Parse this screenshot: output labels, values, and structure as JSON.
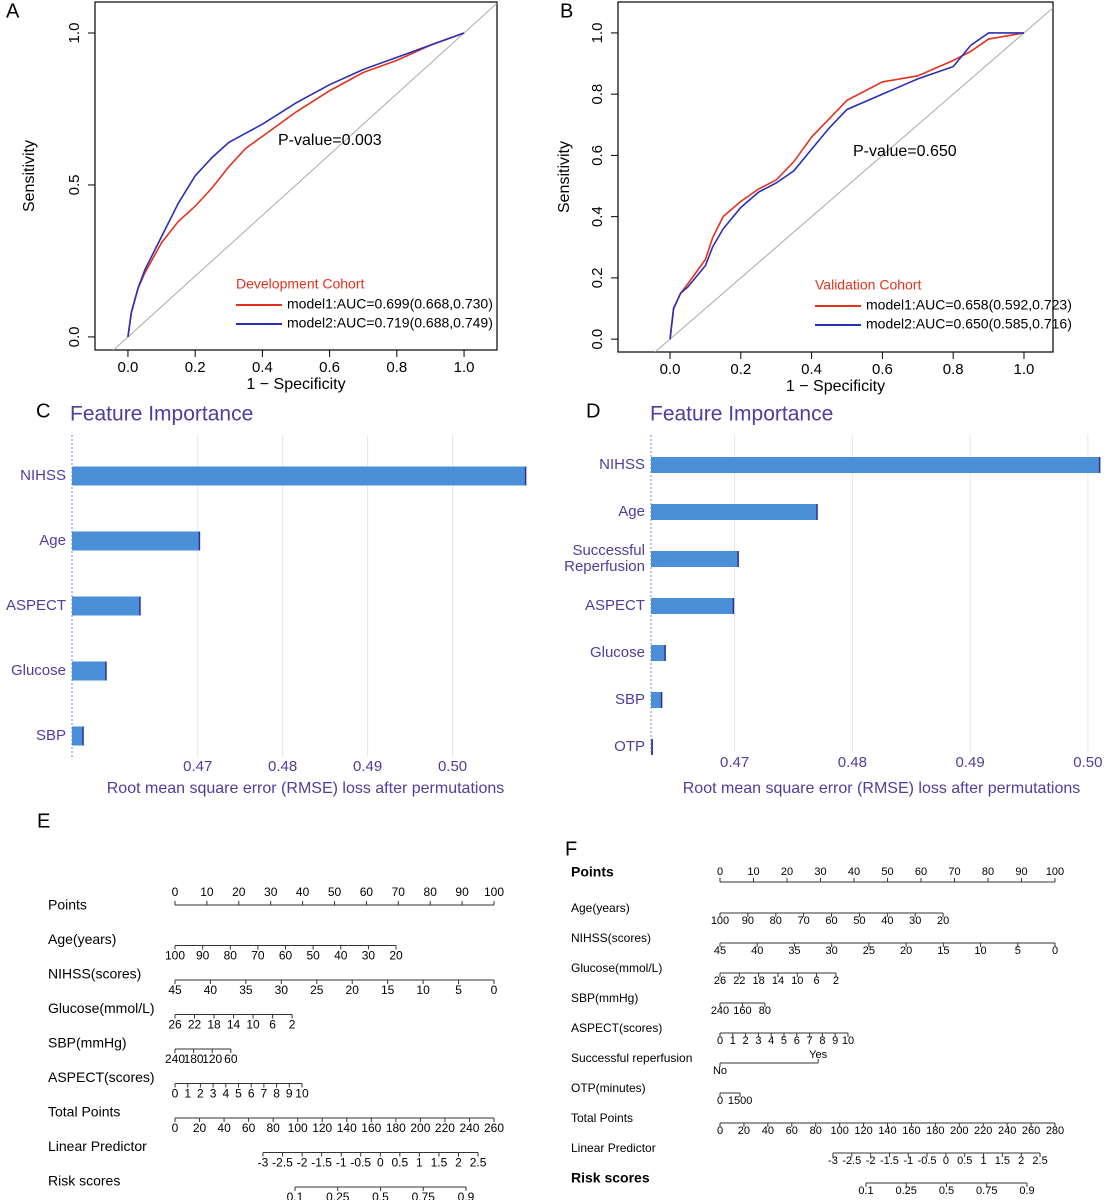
{
  "chart_data": [
    {
      "type": "line",
      "label": "A",
      "xlabel": "1 − Specificity",
      "ylabel": "Sensitivity",
      "xlim": [
        -0.098,
        1.098
      ],
      "ylim": [
        -0.043,
        1.102
      ],
      "xticks": [
        {
          "value": 0,
          "label": "0.0"
        },
        0.2,
        0.4,
        0.6,
        0.8,
        {
          "value": 1,
          "label": "1.0"
        }
      ],
      "yticks": [
        {
          "value": 0,
          "label": "0.0"
        },
        {
          "value": 0.5,
          "label": "0.5"
        },
        {
          "value": 1,
          "label": "1.0"
        }
      ],
      "x": [
        0,
        0.01,
        0.03,
        0.05,
        0.1,
        0.15,
        0.2,
        0.25,
        0.3,
        0.35,
        0.4,
        0.5,
        0.6,
        0.7,
        0.8,
        0.9,
        1
      ],
      "series": [
        {
          "name": "model1:AUC=0.699(0.668,0.730)",
          "color": "#e3321e",
          "values": [
            0,
            0.08,
            0.16,
            0.21,
            0.31,
            0.38,
            0.43,
            0.49,
            0.56,
            0.62,
            0.66,
            0.74,
            0.81,
            0.87,
            0.91,
            0.96,
            1
          ]
        },
        {
          "name": "model2:AUC=0.719(0.688,0.749)",
          "color": "#2a2fb5",
          "values": [
            0,
            0.08,
            0.16,
            0.22,
            0.33,
            0.44,
            0.53,
            0.59,
            0.64,
            0.67,
            0.7,
            0.77,
            0.83,
            0.88,
            0.92,
            0.96,
            1
          ]
        }
      ],
      "legend_title": "Development Cohort",
      "legend_title_color": "#e3321e",
      "legend": "bottom-right",
      "annotation": "P-value=0.003",
      "reference_line": true
    },
    {
      "type": "line",
      "label": "B",
      "xlabel": "1 − Specificity",
      "ylabel": "Sensitivity",
      "xlim": [
        -0.147,
        1.082
      ],
      "ylim": [
        -0.042,
        1.101
      ],
      "xticks": [
        {
          "value": 0,
          "label": "0.0"
        },
        0.2,
        0.4,
        0.6,
        0.8,
        {
          "value": 1,
          "label": "1.0"
        }
      ],
      "yticks": [
        {
          "value": 0,
          "label": "0.0"
        },
        0.2,
        0.4,
        0.6,
        0.8,
        {
          "value": 1,
          "label": "1.0"
        }
      ],
      "x": [
        0,
        0.01,
        0.03,
        0.05,
        0.1,
        0.12,
        0.15,
        0.2,
        0.25,
        0.3,
        0.35,
        0.4,
        0.45,
        0.5,
        0.6,
        0.7,
        0.8,
        0.85,
        0.9,
        1
      ],
      "series": [
        {
          "name": "model1:AUC=0.658(0.592,0.723)",
          "color": "#e3321e",
          "values": [
            0,
            0.1,
            0.15,
            0.18,
            0.26,
            0.33,
            0.4,
            0.45,
            0.49,
            0.52,
            0.58,
            0.66,
            0.72,
            0.78,
            0.84,
            0.86,
            0.91,
            0.94,
            0.98,
            1
          ]
        },
        {
          "name": "model2:AUC=0.650(0.585,0.716)",
          "color": "#2a2fb5",
          "values": [
            0,
            0.1,
            0.15,
            0.17,
            0.24,
            0.3,
            0.36,
            0.43,
            0.48,
            0.51,
            0.55,
            0.62,
            0.69,
            0.75,
            0.8,
            0.85,
            0.89,
            0.96,
            1,
            1
          ]
        }
      ],
      "legend_title": "Validation Cohort",
      "legend_title_color": "#e3321e",
      "legend": "bottom-right",
      "annotation": "P-value=0.650",
      "reference_line": true
    },
    {
      "type": "bar",
      "orientation": "horizontal",
      "label": "C",
      "title": "Feature Importance",
      "xlabel": "Root mean square error (RMSE) loss after permutations",
      "categories": [
        "NIHSS",
        "Age",
        "ASPECT",
        "Glucose",
        "SBP"
      ],
      "values": [
        0.5086,
        0.4702,
        0.4632,
        0.4592,
        0.4565
      ],
      "baseline": 0.4552,
      "xlim": [
        0.4552,
        0.509
      ],
      "xticks": [
        0.47,
        0.48,
        0.49,
        {
          "value": 0.5,
          "label": "0.50"
        }
      ],
      "color": "#4a8fd8",
      "grid": true
    },
    {
      "type": "bar",
      "orientation": "horizontal",
      "label": "D",
      "title": "Feature Importance",
      "xlabel": "Root mean square error (RMSE) loss after permutations",
      "categories": [
        "NIHSS",
        "Age",
        "Successful Reperfusion",
        "ASPECT",
        "Glucose",
        "SBP",
        "OTP"
      ],
      "values": [
        0.501,
        0.477,
        0.4703,
        0.4699,
        0.4641,
        0.4638,
        0.463
      ],
      "baseline": 0.4629,
      "xlim": [
        0.4629,
        0.5012
      ],
      "xticks": [
        0.47,
        0.48,
        0.49,
        {
          "value": 0.5,
          "label": "0.50"
        }
      ],
      "color": "#4a8fd8",
      "grid": true
    },
    {
      "type": "nomogram",
      "label": "E",
      "points_range": [
        0,
        100
      ],
      "total_range": [
        0,
        260
      ],
      "rows": [
        {
          "name": "Points",
          "ticks": [
            0,
            10,
            20,
            30,
            40,
            50,
            60,
            70,
            80,
            90,
            100
          ],
          "span": [
            0,
            100
          ],
          "axis": "points"
        },
        {
          "name": "Age(years)",
          "ticks": [
            100,
            90,
            80,
            70,
            60,
            50,
            40,
            30,
            20
          ],
          "span": [
            0,
            69.3
          ],
          "axis": "points"
        },
        {
          "name": "NIHSS(scores)",
          "ticks": [
            45,
            40,
            35,
            30,
            25,
            20,
            15,
            10,
            5,
            0
          ],
          "span": [
            0,
            100
          ],
          "axis": "points"
        },
        {
          "name": "Glucose(mmol/L)",
          "ticks": [
            26,
            22,
            18,
            14,
            10,
            6,
            2
          ],
          "span": [
            0,
            36.7
          ],
          "axis": "points"
        },
        {
          "name": "SBP(mmHg)",
          "ticks": [
            240,
            180,
            120,
            60
          ],
          "span": [
            0,
            17.5
          ],
          "axis": "points"
        },
        {
          "name": "ASPECT(scores)",
          "ticks": [
            0,
            1,
            2,
            3,
            4,
            5,
            6,
            7,
            8,
            9,
            10
          ],
          "span": [
            0,
            39.8
          ],
          "axis": "points"
        },
        {
          "name": "Total Points",
          "ticks": [
            0,
            20,
            40,
            60,
            80,
            100,
            120,
            140,
            160,
            180,
            200,
            220,
            240,
            260
          ],
          "span": [
            0,
            260
          ],
          "axis": "total"
        },
        {
          "name": "Linear Predictor",
          "ticks": [
            -3,
            -2.5,
            -2,
            -1.5,
            -1,
            -0.5,
            0,
            0.5,
            1,
            1.5,
            2,
            2.5
          ],
          "span": [
            71.7,
            247
          ],
          "axis": "total"
        },
        {
          "name": "Risk scores",
          "ticks": [
            0.1,
            0.25,
            0.5,
            0.75,
            0.9
          ],
          "span": [
            97.8,
            237.2
          ],
          "axis": "total",
          "scale": "logit"
        }
      ]
    },
    {
      "type": "nomogram",
      "label": "F",
      "points_range": [
        0,
        100
      ],
      "total_range": [
        0,
        280
      ],
      "rows": [
        {
          "name": "Points",
          "ticks": [
            0,
            10,
            20,
            30,
            40,
            50,
            60,
            70,
            80,
            90,
            100
          ],
          "span": [
            0,
            100
          ],
          "axis": "points",
          "bold": true
        },
        {
          "name": "Age(years)",
          "ticks": [
            100,
            90,
            80,
            70,
            60,
            50,
            40,
            30,
            20
          ],
          "span": [
            0,
            66.6
          ],
          "axis": "points"
        },
        {
          "name": "NIHSS(scores)",
          "ticks": [
            45,
            40,
            35,
            30,
            25,
            20,
            15,
            10,
            5,
            0
          ],
          "span": [
            0,
            100
          ],
          "axis": "points"
        },
        {
          "name": "Glucose(mmol/L)",
          "ticks": [
            26,
            22,
            18,
            14,
            10,
            6,
            2
          ],
          "span": [
            0,
            34.6
          ],
          "axis": "points"
        },
        {
          "name": "SBP(mmHg)",
          "ticks": [
            240,
            160,
            80
          ],
          "span": [
            0,
            13.4
          ],
          "axis": "points"
        },
        {
          "name": "ASPECT(scores)",
          "ticks": [
            0,
            1,
            2,
            3,
            4,
            5,
            6,
            7,
            8,
            9,
            10
          ],
          "span": [
            0,
            38.2
          ],
          "axis": "points"
        },
        {
          "name": "Successful reperfusion",
          "ticks": [
            "No",
            "Yes"
          ],
          "span": [
            0,
            29.3
          ],
          "axis": "points",
          "tick_side": [
            "below",
            "above"
          ]
        },
        {
          "name": "OTP(minutes)",
          "ticks": [
            0,
            1500
          ],
          "span": [
            0,
            6
          ],
          "axis": "points"
        },
        {
          "name": "Total Points",
          "ticks": [
            0,
            20,
            40,
            60,
            80,
            100,
            120,
            140,
            160,
            180,
            200,
            220,
            240,
            260,
            280
          ],
          "span": [
            0,
            280
          ],
          "axis": "total"
        },
        {
          "name": "Linear Predictor",
          "ticks": [
            -3,
            -2.5,
            -2,
            -1.5,
            -1,
            -0.5,
            0,
            0.5,
            1,
            1.5,
            2,
            2.5
          ],
          "span": [
            94.4,
            267.5
          ],
          "axis": "total"
        },
        {
          "name": "Risk scores",
          "ticks": [
            0.1,
            0.25,
            0.5,
            0.75,
            0.9
          ],
          "span": [
            122,
            256.6
          ],
          "axis": "total",
          "scale": "logit",
          "bold": true
        }
      ]
    }
  ]
}
